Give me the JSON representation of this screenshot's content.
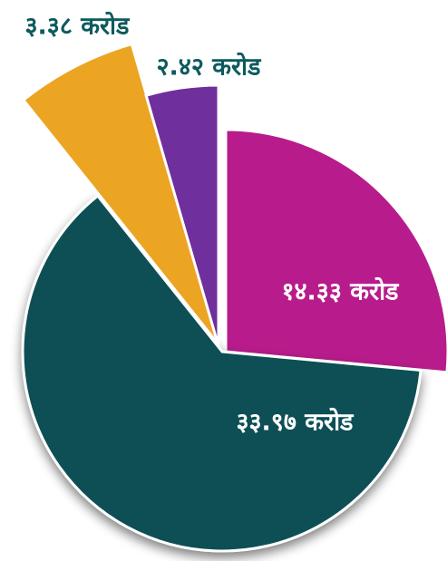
{
  "chart_data": {
    "type": "pie",
    "values": [
      14.33,
      33.97,
      3.38,
      2.42
    ],
    "value_labels": [
      "१४.३३ करोड",
      "३३.९७ करोड",
      "३.३८ करोड",
      "२.४२ करोड"
    ],
    "colors": [
      "#b81b8b",
      "#074f55",
      "#eca423",
      "#6f2f9c"
    ]
  }
}
